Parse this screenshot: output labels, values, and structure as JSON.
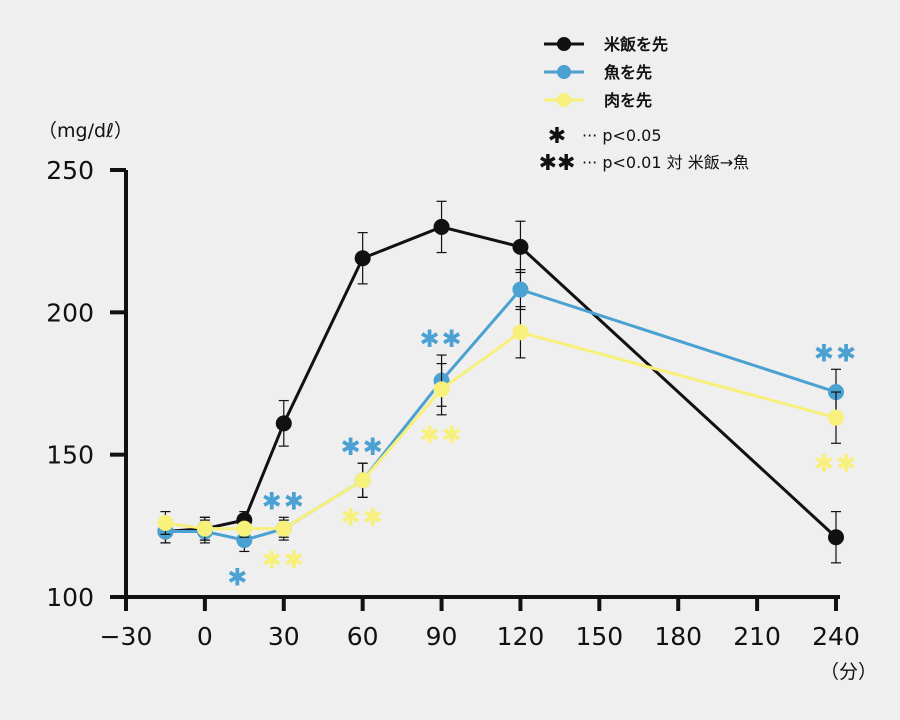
{
  "chart_data": {
    "type": "line",
    "title": "",
    "xlabel": "（分）",
    "ylabel": "（mg/dℓ）",
    "xlim": [
      -30,
      240
    ],
    "ylim": [
      100,
      250
    ],
    "x_ticks": [
      "-30",
      "0",
      "30",
      "60",
      "90",
      "120",
      "150",
      "180",
      "210",
      "240"
    ],
    "y_ticks": [
      "100",
      "150",
      "200",
      "250"
    ],
    "grid": false,
    "legend_position": "top-right",
    "series": [
      {
        "name": "米飯を先",
        "color": "#111111",
        "x": [
          -15,
          0,
          15,
          30,
          60,
          90,
          120,
          240
        ],
        "y": [
          123,
          124,
          127,
          161,
          219,
          230,
          223,
          121
        ],
        "err": [
          4,
          4,
          3,
          8,
          9,
          9,
          9,
          9
        ]
      },
      {
        "name": "魚を先",
        "color": "#4ba1d1",
        "x": [
          -15,
          0,
          15,
          30,
          60,
          90,
          120,
          240
        ],
        "y": [
          123,
          123,
          120,
          124,
          141,
          176,
          208,
          172
        ],
        "err": [
          4,
          4,
          4,
          4,
          6,
          9,
          7,
          8
        ]
      },
      {
        "name": "肉を先",
        "color": "#f7f07a",
        "x": [
          -15,
          0,
          15,
          30,
          60,
          90,
          120,
          240
        ],
        "y": [
          126,
          124,
          124,
          124,
          141,
          173,
          193,
          163
        ],
        "err": [
          4,
          4,
          3,
          3,
          6,
          9,
          9,
          9
        ]
      }
    ],
    "significance": [
      {
        "x": 15,
        "color": "#4ba1d1",
        "mark": "✱",
        "side": "below"
      },
      {
        "x": 30,
        "color": "#4ba1d1",
        "mark": "✱✱",
        "side": "above"
      },
      {
        "x": 30,
        "color": "#f7f07a",
        "mark": "✱✱",
        "side": "below"
      },
      {
        "x": 60,
        "color": "#4ba1d1",
        "mark": "✱✱",
        "side": "above"
      },
      {
        "x": 60,
        "color": "#f7f07a",
        "mark": "✱✱",
        "side": "below"
      },
      {
        "x": 90,
        "color": "#4ba1d1",
        "mark": "✱✱",
        "side": "above"
      },
      {
        "x": 90,
        "color": "#f7f07a",
        "mark": "✱✱",
        "side": "below"
      },
      {
        "x": 240,
        "color": "#4ba1d1",
        "mark": "✱✱",
        "side": "above"
      },
      {
        "x": 240,
        "color": "#f7f07a",
        "mark": "✱✱",
        "side": "below"
      }
    ],
    "notes": [
      {
        "mark": "✱",
        "text": "··· p<0.05"
      },
      {
        "mark": "✱✱",
        "text": "··· p<0.01 対 米飯→魚"
      }
    ]
  }
}
